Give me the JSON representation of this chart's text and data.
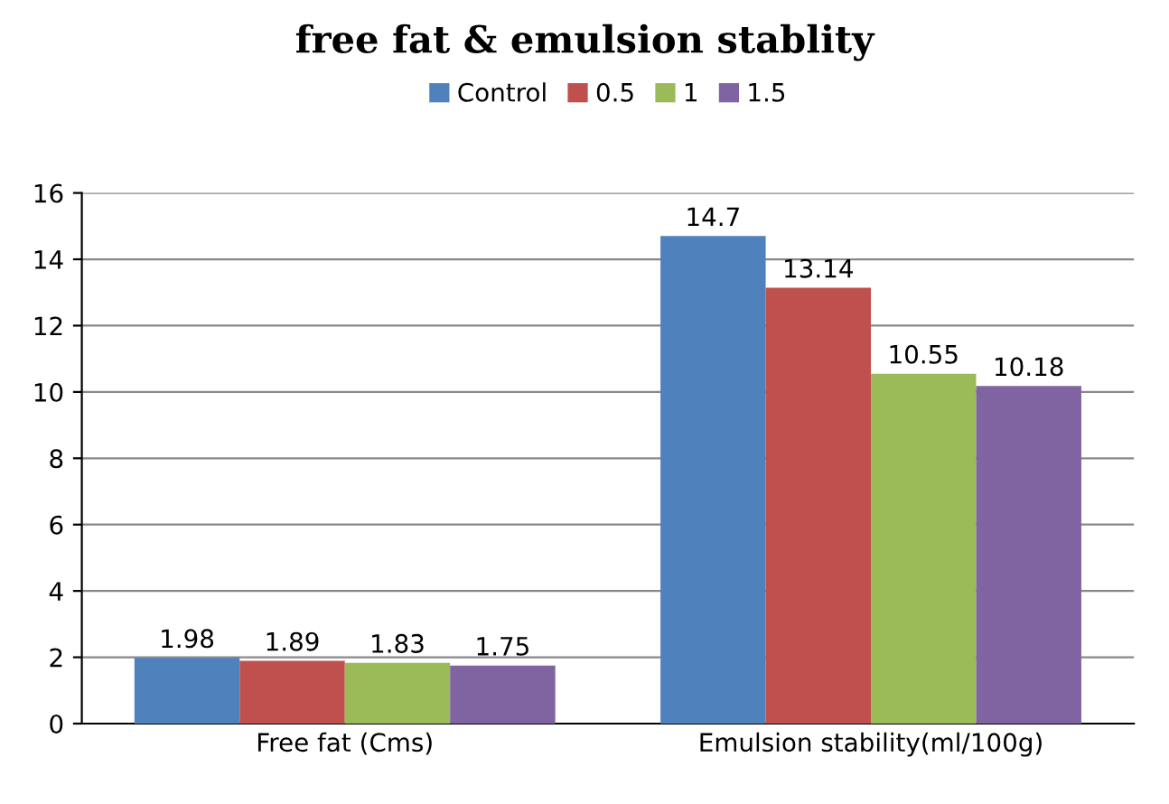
{
  "chart_data": {
    "type": "bar",
    "title": "free fat & emulsion stablity",
    "categories": [
      "Free fat (Cms)",
      "Emulsion stability(ml/100g)"
    ],
    "series": [
      {
        "name": "Control",
        "color": "#4f81bd",
        "values": [
          1.98,
          14.7
        ]
      },
      {
        "name": "0.5",
        "color": "#c0504d",
        "values": [
          1.89,
          13.14
        ]
      },
      {
        "name": "1",
        "color": "#9bbb59",
        "values": [
          1.83,
          10.55
        ]
      },
      {
        "name": "1.5",
        "color": "#8064a2",
        "values": [
          1.75,
          10.18
        ]
      }
    ],
    "ylim": [
      0,
      16
    ],
    "yticks": [
      0,
      2,
      4,
      6,
      8,
      10,
      12,
      14,
      16
    ],
    "grid": "y",
    "legend": "top",
    "data_labels": true
  }
}
